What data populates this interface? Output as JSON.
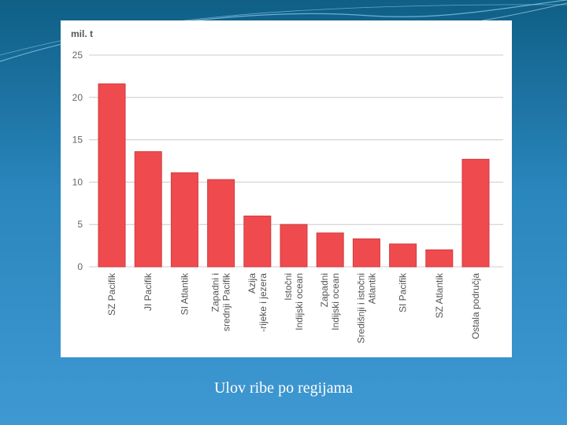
{
  "caption": "Ulov ribe po regijama",
  "chart_data": {
    "type": "bar",
    "unit_label": "mil. t",
    "ylim": [
      0,
      25
    ],
    "yticks": [
      0,
      5,
      10,
      15,
      20,
      25
    ],
    "grid": true,
    "bar_color": "#ef4b4f",
    "categories": [
      [
        "SZ Pacifik"
      ],
      [
        "JI Pacifik"
      ],
      [
        "SI Atlantik"
      ],
      [
        "Zapadni i",
        "srednji Pacifik"
      ],
      [
        "Azija",
        "-rijeke i jezera"
      ],
      [
        "Istočni",
        "Indijski ocean"
      ],
      [
        "Zapadni",
        "Indijski ocean"
      ],
      [
        "Središnji i istočni",
        "Atlantik"
      ],
      [
        "SI Pacifik"
      ],
      [
        "SZ Atlantik"
      ],
      [
        "Ostala područja"
      ]
    ],
    "values": [
      21.6,
      13.6,
      11.1,
      10.3,
      6.0,
      5.0,
      4.0,
      3.3,
      2.7,
      2.0,
      12.7
    ]
  }
}
